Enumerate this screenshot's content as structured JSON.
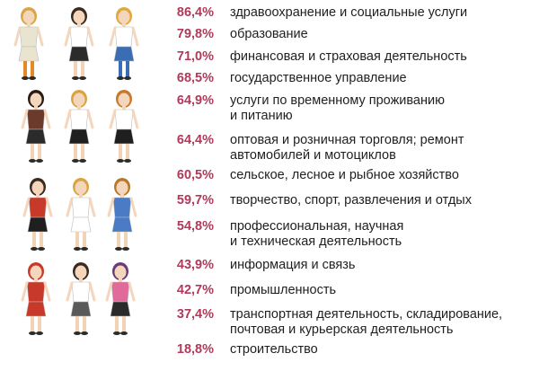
{
  "illustration": {
    "description_icon": "women-professions-illustration",
    "figure_count": 13
  },
  "colors": {
    "percent": "#b03a5b",
    "text": "#1f1f1f"
  },
  "rows": [
    {
      "percent": "86,4%",
      "lines": [
        "здравоохранение и социальные услуги"
      ]
    },
    {
      "percent": "79,8%",
      "lines": [
        "образование"
      ]
    },
    {
      "percent": "71,0%",
      "lines": [
        "финансовая и страховая деятельность"
      ]
    },
    {
      "percent": "68,5%",
      "lines": [
        "государственное управление"
      ]
    },
    {
      "percent": "64,9%",
      "lines": [
        "услуги по временному проживанию",
        "и питанию"
      ]
    },
    {
      "percent": "64,4%",
      "lines": [
        "оптовая и розничная торговля; ремонт",
        "автомобилей и мотоциклов"
      ]
    },
    {
      "percent": "60,5%",
      "lines": [
        "сельское, лесное и рыбное хозяйство"
      ]
    },
    {
      "percent": "59,7%",
      "lines": [
        "творчество, спорт, развлечения и отдых"
      ]
    },
    {
      "percent": "54,8%",
      "lines": [
        "профессиональная, научная",
        "и техническая деятельность"
      ]
    },
    {
      "percent": "43,9%",
      "lines": [
        "информация и связь"
      ]
    },
    {
      "percent": "42,7%",
      "lines": [
        "промышленность"
      ]
    },
    {
      "percent": "37,4%",
      "lines": [
        "транспортная деятельность, складирование,",
        "почтовая и курьерская деятельность"
      ]
    },
    {
      "percent": "18,8%",
      "lines": [
        "строительство"
      ]
    }
  ]
}
